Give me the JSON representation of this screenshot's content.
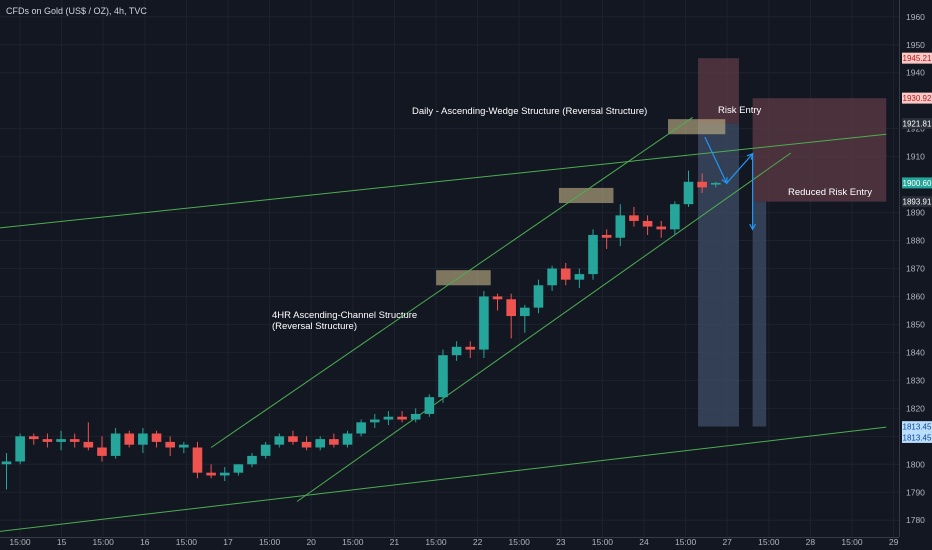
{
  "header": {
    "title": "CFDs on Gold (US$ / OZ), 4h, TVC"
  },
  "colors": {
    "background": "#131722",
    "bull": "#26a69a",
    "bear": "#ef5350",
    "trendline": "#4caf50",
    "arrow": "#2196f3",
    "zone": "#c8b58a",
    "risk_box": "#5d3b45",
    "target_box": "#3c4a63"
  },
  "annotations": {
    "wedge": "Daily - Ascending-Wedge Structure (Reversal Structure)",
    "channel_line1": "4HR Ascending-Channel Structure",
    "channel_line2": "(Reversal Structure)",
    "risk_entry": "Risk Entry",
    "reduced_risk_entry": "Reduced Risk Entry"
  },
  "chart_data": {
    "type": "candlestick",
    "title": "CFDs on Gold (US$ / OZ), 4h, TVC",
    "xlabel": "",
    "ylabel": "",
    "ylim": [
      1774,
      1966
    ],
    "y_ticks": [
      1780,
      1790,
      1800,
      1810,
      1820,
      1830,
      1840,
      1850,
      1860,
      1870,
      1880,
      1890,
      1910,
      1920,
      1940,
      1950,
      1960
    ],
    "x_ticks": [
      "15:00",
      "15",
      "15:00",
      "16",
      "15:00",
      "17",
      "15:00",
      "20",
      "15:00",
      "21",
      "15:00",
      "22",
      "15:00",
      "23",
      "15:00",
      "24",
      "15:00",
      "27",
      "15:00",
      "28",
      "15:00",
      "29"
    ],
    "price_tags": [
      {
        "value": "1945.21",
        "price": 1945.21,
        "kind": "red"
      },
      {
        "value": "1930.92",
        "price": 1930.92,
        "kind": "red"
      },
      {
        "value": "1921.81",
        "price": 1921.81,
        "kind": "dark"
      },
      {
        "value": "1900.60",
        "price": 1900.6,
        "kind": "green"
      },
      {
        "value": "1893.91",
        "price": 1893.91,
        "kind": "dark"
      },
      {
        "value": "1813.45",
        "price": 1813.45,
        "kind": "blue"
      },
      {
        "value": "1813.45",
        "price": 1809.6,
        "kind": "blue"
      }
    ],
    "candles": [
      {
        "i": 0,
        "o": 1800,
        "h": 1804,
        "l": 1791,
        "c": 1801
      },
      {
        "i": 1,
        "o": 1801,
        "h": 1811,
        "l": 1800,
        "c": 1810
      },
      {
        "i": 2,
        "o": 1810,
        "h": 1811,
        "l": 1807,
        "c": 1809
      },
      {
        "i": 3,
        "o": 1809,
        "h": 1811,
        "l": 1806,
        "c": 1808
      },
      {
        "i": 4,
        "o": 1808,
        "h": 1812,
        "l": 1805,
        "c": 1809
      },
      {
        "i": 5,
        "o": 1809,
        "h": 1811,
        "l": 1806,
        "c": 1808
      },
      {
        "i": 6,
        "o": 1808,
        "h": 1815,
        "l": 1805,
        "c": 1806
      },
      {
        "i": 7,
        "o": 1806,
        "h": 1810,
        "l": 1801,
        "c": 1803
      },
      {
        "i": 8,
        "o": 1803,
        "h": 1813,
        "l": 1802,
        "c": 1811
      },
      {
        "i": 9,
        "o": 1811,
        "h": 1812,
        "l": 1806,
        "c": 1807
      },
      {
        "i": 10,
        "o": 1807,
        "h": 1813,
        "l": 1804,
        "c": 1811
      },
      {
        "i": 11,
        "o": 1811,
        "h": 1812,
        "l": 1806,
        "c": 1808
      },
      {
        "i": 12,
        "o": 1808,
        "h": 1810,
        "l": 1803,
        "c": 1806
      },
      {
        "i": 13,
        "o": 1806,
        "h": 1808,
        "l": 1804,
        "c": 1807
      },
      {
        "i": 14,
        "o": 1806,
        "h": 1808,
        "l": 1795,
        "c": 1797
      },
      {
        "i": 15,
        "o": 1797,
        "h": 1800,
        "l": 1795,
        "c": 1796
      },
      {
        "i": 16,
        "o": 1796,
        "h": 1799,
        "l": 1794,
        "c": 1797
      },
      {
        "i": 17,
        "o": 1797,
        "h": 1800,
        "l": 1796,
        "c": 1800
      },
      {
        "i": 18,
        "o": 1800,
        "h": 1804,
        "l": 1799,
        "c": 1803
      },
      {
        "i": 19,
        "o": 1803,
        "h": 1808,
        "l": 1802,
        "c": 1807
      },
      {
        "i": 20,
        "o": 1807,
        "h": 1811,
        "l": 1806,
        "c": 1810
      },
      {
        "i": 21,
        "o": 1810,
        "h": 1812,
        "l": 1807,
        "c": 1808
      },
      {
        "i": 22,
        "o": 1808,
        "h": 1810,
        "l": 1805,
        "c": 1806
      },
      {
        "i": 23,
        "o": 1806,
        "h": 1810,
        "l": 1805,
        "c": 1809
      },
      {
        "i": 24,
        "o": 1809,
        "h": 1811,
        "l": 1806,
        "c": 1807
      },
      {
        "i": 25,
        "o": 1807,
        "h": 1812,
        "l": 1806,
        "c": 1811
      },
      {
        "i": 26,
        "o": 1811,
        "h": 1816,
        "l": 1810,
        "c": 1815
      },
      {
        "i": 27,
        "o": 1815,
        "h": 1818,
        "l": 1813,
        "c": 1816
      },
      {
        "i": 28,
        "o": 1816,
        "h": 1819,
        "l": 1814,
        "c": 1817
      },
      {
        "i": 29,
        "o": 1817,
        "h": 1819,
        "l": 1815,
        "c": 1816
      },
      {
        "i": 30,
        "o": 1816,
        "h": 1820,
        "l": 1815,
        "c": 1818
      },
      {
        "i": 31,
        "o": 1818,
        "h": 1825,
        "l": 1817,
        "c": 1824
      },
      {
        "i": 32,
        "o": 1824,
        "h": 1841,
        "l": 1822,
        "c": 1839
      },
      {
        "i": 33,
        "o": 1839,
        "h": 1844,
        "l": 1837,
        "c": 1842
      },
      {
        "i": 34,
        "o": 1842,
        "h": 1844,
        "l": 1838,
        "c": 1841
      },
      {
        "i": 35,
        "o": 1841,
        "h": 1862,
        "l": 1838,
        "c": 1860
      },
      {
        "i": 36,
        "o": 1860,
        "h": 1861,
        "l": 1855,
        "c": 1859
      },
      {
        "i": 37,
        "o": 1859,
        "h": 1861,
        "l": 1845,
        "c": 1853
      },
      {
        "i": 38,
        "o": 1853,
        "h": 1857,
        "l": 1847,
        "c": 1856
      },
      {
        "i": 39,
        "o": 1856,
        "h": 1866,
        "l": 1854,
        "c": 1864
      },
      {
        "i": 40,
        "o": 1864,
        "h": 1871,
        "l": 1862,
        "c": 1870
      },
      {
        "i": 41,
        "o": 1870,
        "h": 1872,
        "l": 1864,
        "c": 1866
      },
      {
        "i": 42,
        "o": 1866,
        "h": 1870,
        "l": 1863,
        "c": 1868
      },
      {
        "i": 43,
        "o": 1868,
        "h": 1884,
        "l": 1866,
        "c": 1882
      },
      {
        "i": 44,
        "o": 1882,
        "h": 1884,
        "l": 1877,
        "c": 1881
      },
      {
        "i": 45,
        "o": 1881,
        "h": 1893,
        "l": 1878,
        "c": 1889
      },
      {
        "i": 46,
        "o": 1889,
        "h": 1892,
        "l": 1885,
        "c": 1887
      },
      {
        "i": 47,
        "o": 1887,
        "h": 1889,
        "l": 1882,
        "c": 1885
      },
      {
        "i": 48,
        "o": 1885,
        "h": 1887,
        "l": 1881,
        "c": 1884
      },
      {
        "i": 49,
        "o": 1884,
        "h": 1894,
        "l": 1882,
        "c": 1893
      },
      {
        "i": 50,
        "o": 1893,
        "h": 1905,
        "l": 1892,
        "c": 1901
      },
      {
        "i": 51,
        "o": 1901,
        "h": 1904,
        "l": 1897,
        "c": 1899
      },
      {
        "i": 52,
        "o": 1900,
        "h": 1901,
        "l": 1899,
        "c": 1900.6
      }
    ],
    "trendlines": [
      {
        "name": "wedge-upper",
        "points": [
          [
            -0.5,
            1884.5
          ],
          [
            64.5,
            1918
          ]
        ]
      },
      {
        "name": "wedge-lower",
        "points": [
          [
            -0.5,
            1776
          ],
          [
            64.5,
            1813.3
          ]
        ]
      },
      {
        "name": "channel-upper",
        "points": [
          [
            15,
            1806
          ],
          [
            50.3,
            1924
          ]
        ]
      },
      {
        "name": "channel-lower",
        "points": [
          [
            21.3,
            1786.7
          ],
          [
            57.5,
            1911.3
          ]
        ]
      }
    ],
    "zones": [
      {
        "name": "zone-1",
        "x0": 31.5,
        "x1": 35.5,
        "y0": 1864,
        "y1": 1869.4
      },
      {
        "name": "zone-2",
        "x0": 40.5,
        "x1": 44.5,
        "y0": 1893.4,
        "y1": 1898.8
      },
      {
        "name": "zone-3",
        "x0": 48.5,
        "x1": 52.7,
        "y0": 1918,
        "y1": 1923.4
      }
    ],
    "position_boxes": [
      {
        "name": "risk-entry-stop",
        "x0": 50.7,
        "x1": 53.7,
        "y0": 1921.8,
        "y1": 1945.2,
        "kind": "risk"
      },
      {
        "name": "risk-entry-target",
        "x0": 50.7,
        "x1": 53.7,
        "y0": 1813.5,
        "y1": 1921.8,
        "kind": "target"
      },
      {
        "name": "reduced-entry-stop",
        "x0": 54.7,
        "x1": 64.5,
        "y0": 1893.9,
        "y1": 1930.9,
        "kind": "risk"
      },
      {
        "name": "reduced-entry-target",
        "x0": 54.7,
        "x1": 55.7,
        "y0": 1813.5,
        "y1": 1893.9,
        "kind": "target"
      }
    ],
    "arrows": [
      [
        [
          51.2,
          1917
        ],
        [
          52.8,
          1900.5
        ],
        [
          54.7,
          1911
        ],
        [
          54.7,
          1884
        ]
      ]
    ]
  }
}
